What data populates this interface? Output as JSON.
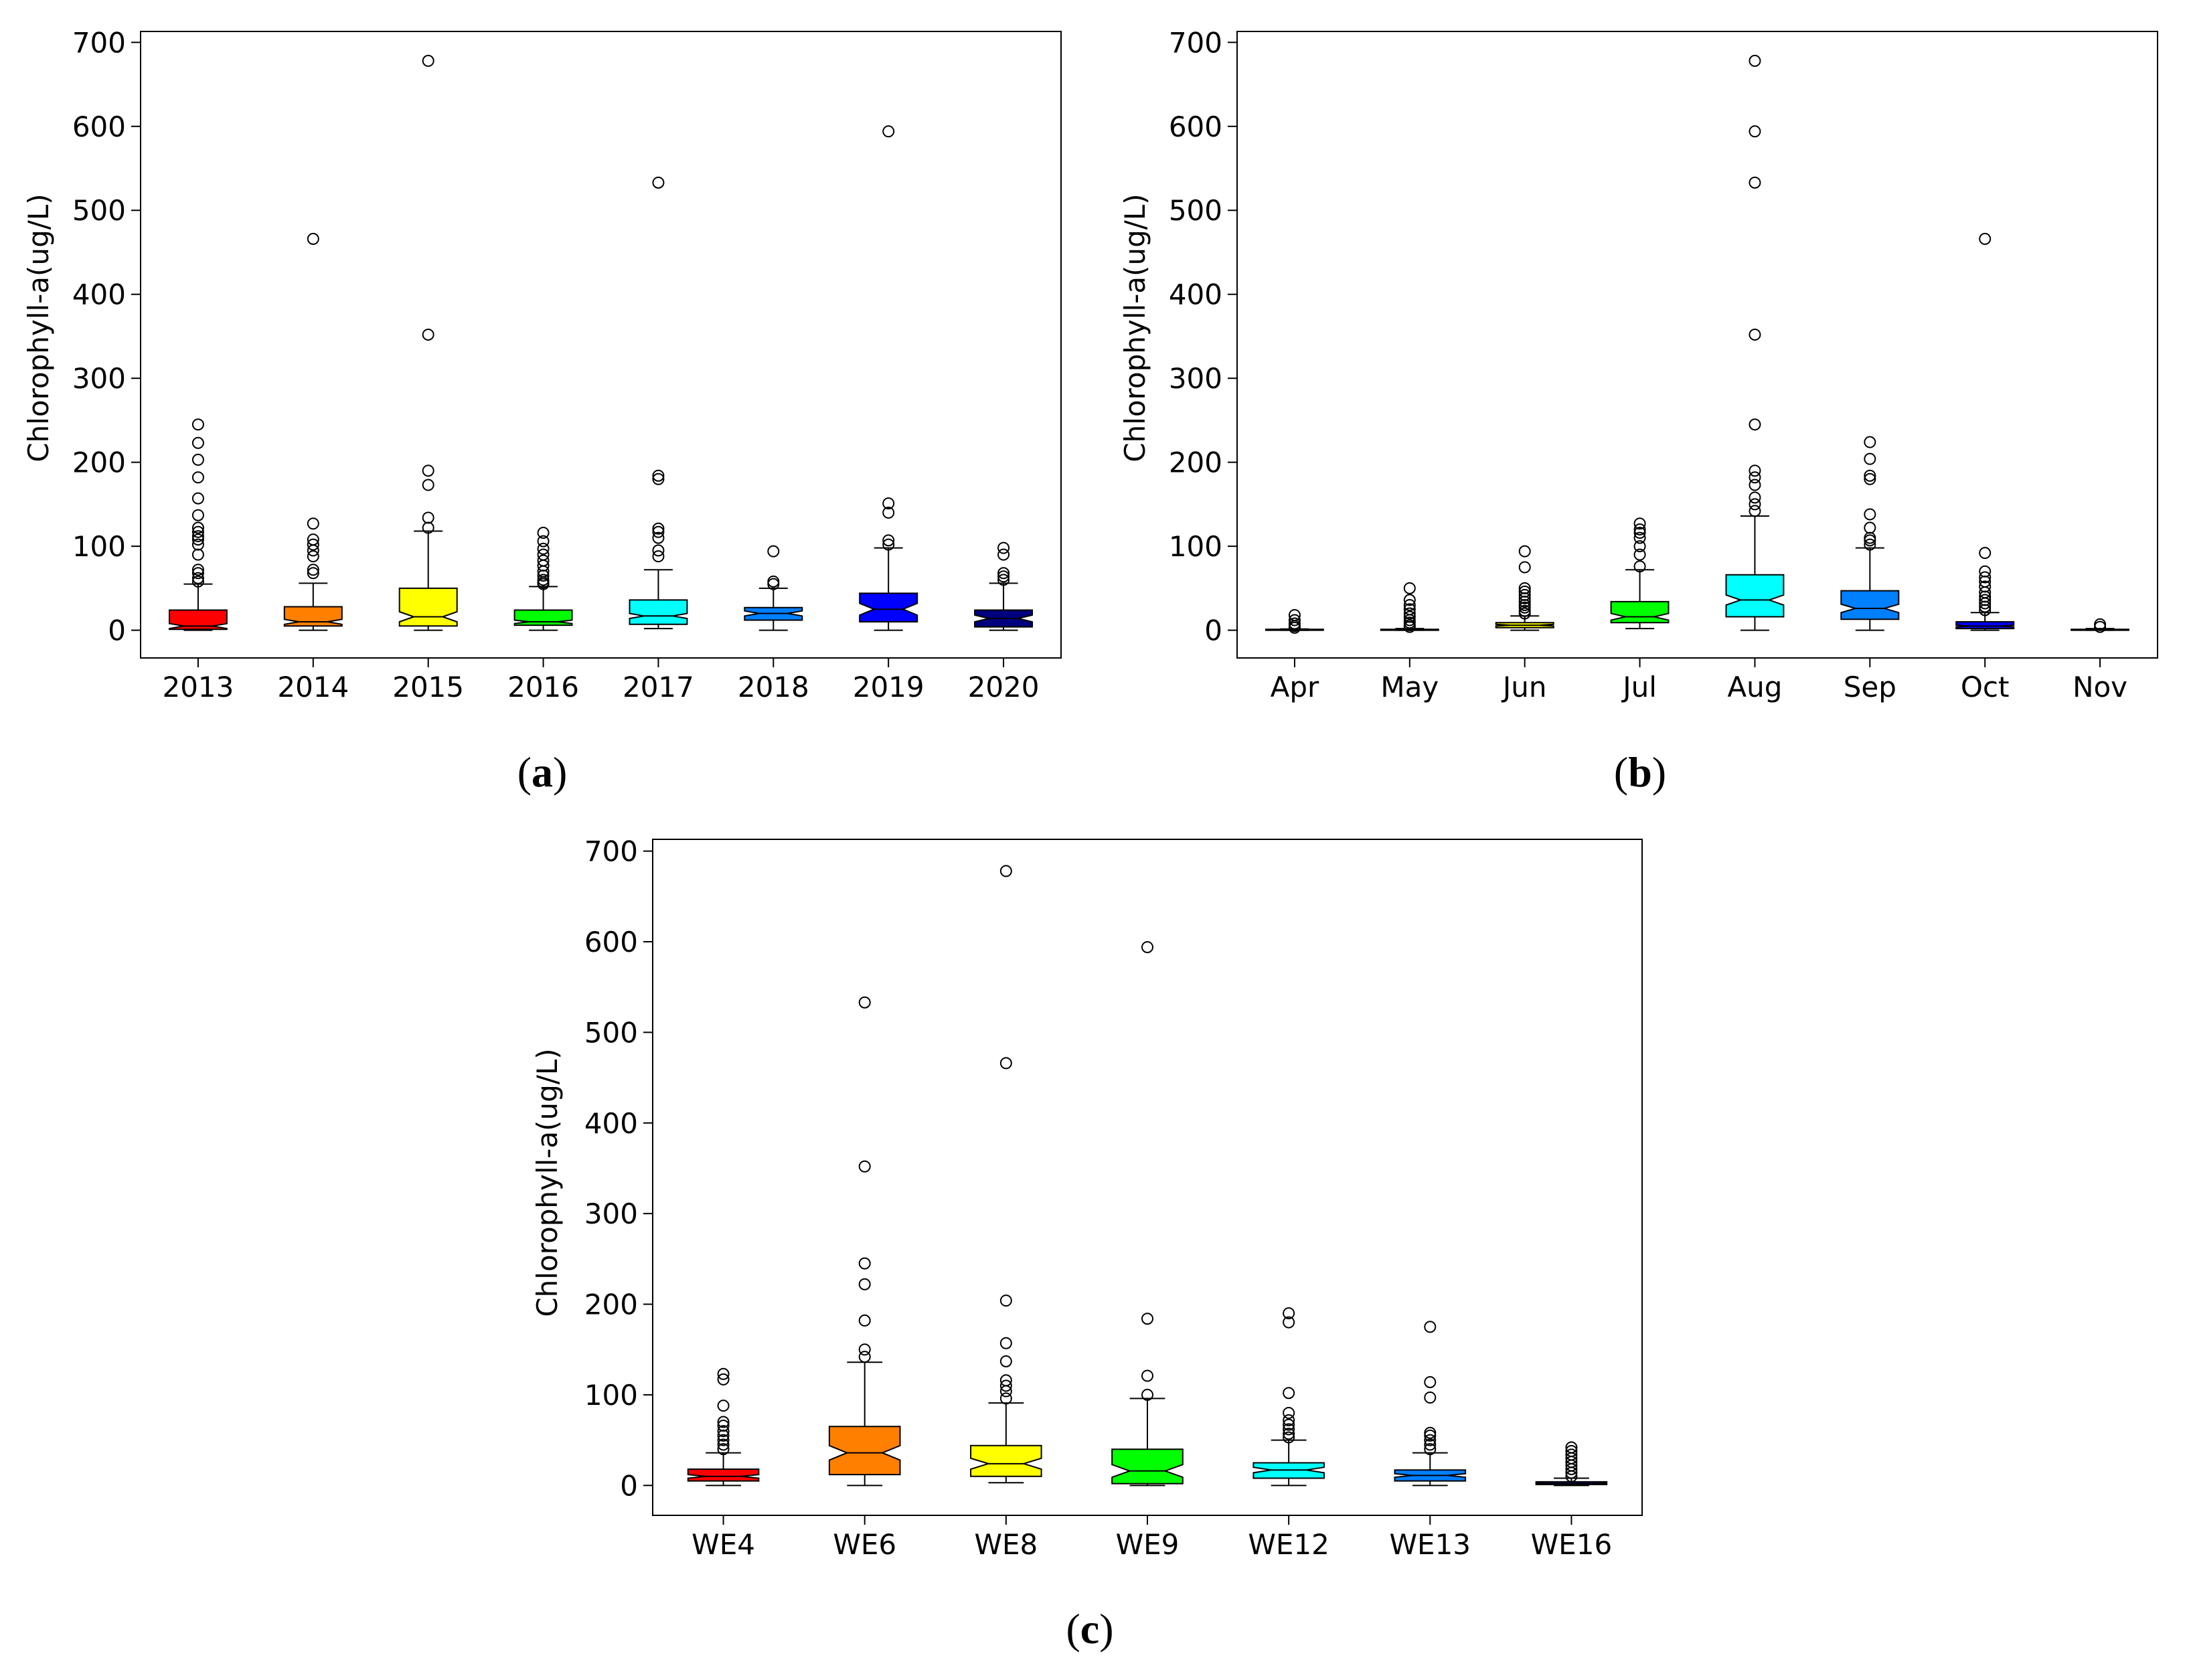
{
  "figure": {
    "panel_labels": [
      {
        "open": "(",
        "letter": "a",
        "close": ")"
      },
      {
        "open": "(",
        "letter": "b",
        "close": ")"
      },
      {
        "open": "(",
        "letter": "c",
        "close": ")"
      }
    ]
  },
  "chart_data": [
    {
      "type": "boxplot",
      "panel": "a",
      "title": "",
      "xlabel": "",
      "ylabel": "Chlorophyll-a(ug/L)",
      "ylim": [
        -33,
        713
      ],
      "yticks": [
        0,
        100,
        200,
        300,
        400,
        500,
        600,
        700
      ],
      "notched": true,
      "categories": [
        "2013",
        "2014",
        "2015",
        "2016",
        "2017",
        "2018",
        "2019",
        "2020"
      ],
      "colors": [
        "#ff0000",
        "#ff7f00",
        "#ffff00",
        "#00ff00",
        "#00ffff",
        "#007fff",
        "#0000ff",
        "#00007f"
      ],
      "boxes": [
        {
          "whislo": 0,
          "q1": 1,
          "med": 5,
          "q3": 24,
          "whishi": 55,
          "notch_lo": 2,
          "notch_hi": 8,
          "fliers": [
            58,
            62,
            68,
            72,
            90,
            102,
            108,
            112,
            117,
            122,
            137,
            157,
            182,
            203,
            223,
            245
          ]
        },
        {
          "whislo": 0,
          "q1": 5,
          "med": 10,
          "q3": 28,
          "whishi": 56,
          "notch_lo": 7,
          "notch_hi": 13,
          "fliers": [
            68,
            72,
            88,
            95,
            102,
            108,
            127,
            466
          ]
        },
        {
          "whislo": 0,
          "q1": 5,
          "med": 16,
          "q3": 50,
          "whishi": 118,
          "notch_lo": 10,
          "notch_hi": 22,
          "fliers": [
            122,
            134,
            173,
            190,
            352,
            678
          ]
        },
        {
          "whislo": 0,
          "q1": 6,
          "med": 10,
          "q3": 24,
          "whishi": 52,
          "notch_lo": 8,
          "notch_hi": 12,
          "fliers": [
            55,
            57,
            60,
            65,
            70,
            77,
            83,
            90,
            97,
            106,
            116
          ]
        },
        {
          "whislo": 2,
          "q1": 7,
          "med": 17,
          "q3": 36,
          "whishi": 72,
          "notch_lo": 14,
          "notch_hi": 20,
          "fliers": [
            88,
            95,
            110,
            117,
            121,
            180,
            184,
            533
          ]
        },
        {
          "whislo": 0,
          "q1": 12,
          "med": 20,
          "q3": 27,
          "whishi": 50,
          "notch_lo": 17,
          "notch_hi": 23,
          "fliers": [
            55,
            58,
            94
          ]
        },
        {
          "whislo": 0,
          "q1": 10,
          "med": 25,
          "q3": 44,
          "whishi": 98,
          "notch_lo": 18,
          "notch_hi": 32,
          "fliers": [
            102,
            107,
            140,
            151,
            594
          ]
        },
        {
          "whislo": 0,
          "q1": 4,
          "med": 14,
          "q3": 24,
          "whishi": 56,
          "notch_lo": 10,
          "notch_hi": 18,
          "fliers": [
            60,
            64,
            68,
            90,
            98
          ]
        }
      ]
    },
    {
      "type": "boxplot",
      "panel": "b",
      "title": "",
      "xlabel": "",
      "ylabel": "Chlorophyll-a(ug/L)",
      "ylim": [
        -33,
        713
      ],
      "yticks": [
        0,
        100,
        200,
        300,
        400,
        500,
        600,
        700
      ],
      "notched": true,
      "categories": [
        "Apr",
        "May",
        "Jun",
        "Jul",
        "Aug",
        "Sep",
        "Oct",
        "Nov"
      ],
      "colors": [
        "#ff0000",
        "#ff7f00",
        "#ffff00",
        "#00ff00",
        "#00ffff",
        "#007fff",
        "#0000ff",
        "#00007f"
      ],
      "boxes": [
        {
          "whislo": 0,
          "q1": 0,
          "med": 0.5,
          "q3": 1,
          "whishi": 1.5,
          "notch_lo": 0.3,
          "notch_hi": 0.7,
          "fliers": [
            3,
            5,
            8,
            12,
            18
          ]
        },
        {
          "whislo": 0,
          "q1": 0,
          "med": 0.5,
          "q3": 1,
          "whishi": 2,
          "notch_lo": 0.3,
          "notch_hi": 0.7,
          "fliers": [
            4,
            6,
            9,
            12,
            16,
            20,
            25,
            30,
            36,
            50
          ]
        },
        {
          "whislo": 0,
          "q1": 3,
          "med": 6,
          "q3": 9,
          "whishi": 17,
          "notch_lo": 5,
          "notch_hi": 7,
          "fliers": [
            20,
            23,
            27,
            30,
            34,
            38,
            42,
            46,
            50,
            75,
            94
          ]
        },
        {
          "whislo": 2,
          "q1": 9,
          "med": 16,
          "q3": 34,
          "whishi": 72,
          "notch_lo": 12,
          "notch_hi": 20,
          "fliers": [
            76,
            90,
            100,
            110,
            116,
            120,
            127
          ]
        },
        {
          "whislo": 0,
          "q1": 16,
          "med": 36,
          "q3": 66,
          "whishi": 136,
          "notch_lo": 30,
          "notch_hi": 42,
          "fliers": [
            142,
            150,
            158,
            173,
            182,
            190,
            245,
            352,
            533,
            594,
            678
          ]
        },
        {
          "whislo": 0,
          "q1": 13,
          "med": 26,
          "q3": 47,
          "whishi": 98,
          "notch_lo": 21,
          "notch_hi": 31,
          "fliers": [
            102,
            107,
            110,
            122,
            138,
            180,
            184,
            204,
            224
          ]
        },
        {
          "whislo": 0,
          "q1": 2,
          "med": 5,
          "q3": 10,
          "whishi": 21,
          "notch_lo": 4,
          "notch_hi": 6,
          "fliers": [
            24,
            28,
            32,
            36,
            40,
            45,
            52,
            58,
            63,
            70,
            92,
            466
          ]
        },
        {
          "whislo": 0,
          "q1": 0,
          "med": 0.5,
          "q3": 1,
          "whishi": 2,
          "notch_lo": 0.3,
          "notch_hi": 0.7,
          "fliers": [
            4,
            7
          ]
        }
      ]
    },
    {
      "type": "boxplot",
      "panel": "c",
      "title": "",
      "xlabel": "",
      "ylabel": "Chlorophyll-a(ug/L)",
      "ylim": [
        -33,
        713
      ],
      "yticks": [
        0,
        100,
        200,
        300,
        400,
        500,
        600,
        700
      ],
      "notched": true,
      "categories": [
        "WE4",
        "WE6",
        "WE8",
        "WE9",
        "WE12",
        "WE13",
        "WE16"
      ],
      "colors": [
        "#ff0000",
        "#ff7f00",
        "#ffff00",
        "#00ff00",
        "#00ffff",
        "#007fff",
        "#00007f"
      ],
      "boxes": [
        {
          "whislo": 0,
          "q1": 5,
          "med": 10,
          "q3": 18,
          "whishi": 36,
          "notch_lo": 8,
          "notch_hi": 12,
          "fliers": [
            40,
            45,
            50,
            55,
            60,
            66,
            70,
            88,
            117,
            123
          ]
        },
        {
          "whislo": 0,
          "q1": 12,
          "med": 36,
          "q3": 65,
          "whishi": 136,
          "notch_lo": 28,
          "notch_hi": 44,
          "fliers": [
            142,
            150,
            182,
            222,
            245,
            352,
            533
          ]
        },
        {
          "whislo": 3,
          "q1": 10,
          "med": 24,
          "q3": 44,
          "whishi": 91,
          "notch_lo": 18,
          "notch_hi": 30,
          "fliers": [
            96,
            104,
            110,
            116,
            137,
            157,
            204,
            466,
            678
          ]
        },
        {
          "whislo": 0,
          "q1": 2,
          "med": 16,
          "q3": 40,
          "whishi": 96,
          "notch_lo": 9,
          "notch_hi": 23,
          "fliers": [
            100,
            121,
            184,
            594
          ]
        },
        {
          "whislo": 0,
          "q1": 8,
          "med": 17,
          "q3": 25,
          "whishi": 50,
          "notch_lo": 14,
          "notch_hi": 20,
          "fliers": [
            53,
            57,
            62,
            67,
            72,
            80,
            102,
            180,
            190
          ]
        },
        {
          "whislo": 0,
          "q1": 5,
          "med": 11,
          "q3": 17,
          "whishi": 36,
          "notch_lo": 9,
          "notch_hi": 13,
          "fliers": [
            40,
            45,
            50,
            55,
            58,
            97,
            114,
            175
          ]
        },
        {
          "whislo": 0,
          "q1": 1,
          "med": 2,
          "q3": 4,
          "whishi": 8,
          "notch_lo": 1.5,
          "notch_hi": 2.5,
          "fliers": [
            10,
            14,
            18,
            22,
            26,
            30,
            34,
            38,
            42
          ]
        }
      ]
    }
  ]
}
